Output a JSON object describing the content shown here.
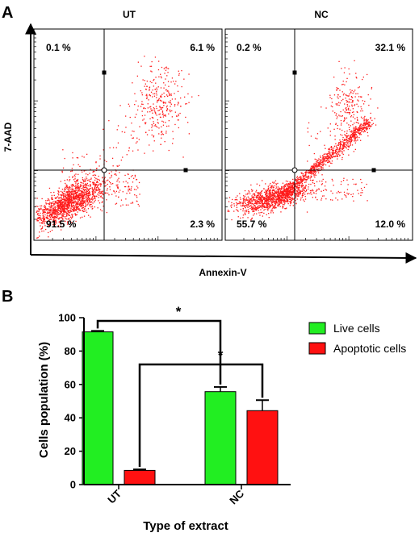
{
  "panels": {
    "a_label": "A",
    "b_label": "B"
  },
  "flow": {
    "ylabel": "7-AAD",
    "xlabel": "Annexin-V",
    "dot_color": "#ff1a1a",
    "plots": [
      {
        "title": "UT",
        "quadrants": {
          "top_left": "0.1 %",
          "top_right": "6.1 %",
          "bottom_left": "91.5 %",
          "bottom_right": "2.3 %"
        }
      },
      {
        "title": "NC",
        "quadrants": {
          "top_left": "0.2 %",
          "top_right": "32.1 %",
          "bottom_left": "55.7 %",
          "bottom_right": "12.0 %"
        }
      }
    ]
  },
  "chart_data": {
    "type": "bar",
    "categories": [
      "UT",
      "NC"
    ],
    "series": [
      {
        "name": "Live cells",
        "values": [
          91.5,
          55.7
        ],
        "errors": [
          0.6,
          2.8
        ],
        "color": "#22ee22"
      },
      {
        "name": "Apoptotic cells",
        "values": [
          8.5,
          44.3
        ],
        "errors": [
          0.6,
          6.3
        ],
        "color": "#ff1111"
      }
    ],
    "xlabel": "Type of extract",
    "ylabel": "Cells population (%)",
    "ylim": [
      0,
      100
    ],
    "yticks": [
      0,
      20,
      40,
      60,
      80,
      100
    ],
    "legend_position": "top-right",
    "significance": [
      {
        "label": "*",
        "between": [
          "UT Live cells",
          "NC Live cells"
        ]
      },
      {
        "label": "*",
        "between": [
          "UT Apoptotic cells",
          "NC Apoptotic cells"
        ]
      }
    ]
  }
}
